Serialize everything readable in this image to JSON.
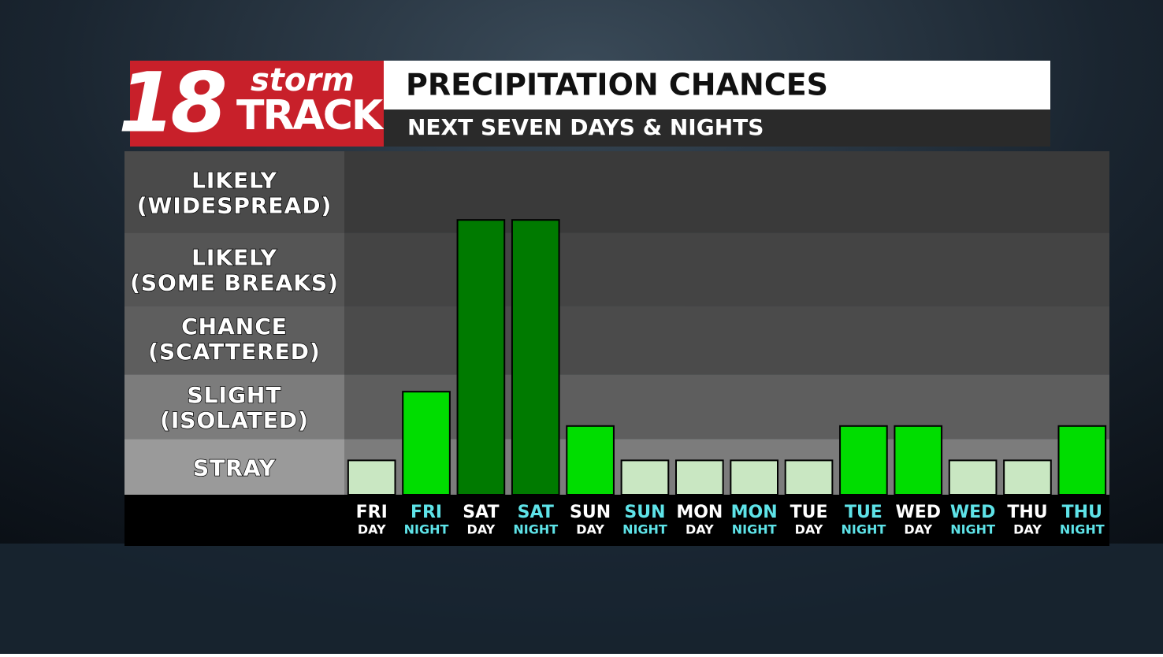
{
  "logo": {
    "number": "18",
    "word1": "storm",
    "word2": "TRACK"
  },
  "chart_data": {
    "type": "bar",
    "title": "PRECIPITATION CHANCES",
    "subtitle": "NEXT SEVEN DAYS & NIGHTS",
    "categories": [
      [
        "FRI",
        "DAY"
      ],
      [
        "FRI",
        "NIGHT"
      ],
      [
        "SAT",
        "DAY"
      ],
      [
        "SAT",
        "NIGHT"
      ],
      [
        "SUN",
        "DAY"
      ],
      [
        "SUN",
        "NIGHT"
      ],
      [
        "MON",
        "DAY"
      ],
      [
        "MON",
        "NIGHT"
      ],
      [
        "TUE",
        "DAY"
      ],
      [
        "TUE",
        "NIGHT"
      ],
      [
        "WED",
        "DAY"
      ],
      [
        "WED",
        "NIGHT"
      ],
      [
        "THU",
        "DAY"
      ],
      [
        "THU",
        "NIGHT"
      ]
    ],
    "category_colors": [
      "#ffffff",
      "#5ee3e8",
      "#ffffff",
      "#5ee3e8",
      "#ffffff",
      "#5ee3e8",
      "#ffffff",
      "#5ee3e8",
      "#ffffff",
      "#5ee3e8",
      "#ffffff",
      "#5ee3e8",
      "#ffffff",
      "#5ee3e8"
    ],
    "values": [
      1,
      3,
      8,
      8,
      2,
      1,
      1,
      1,
      1,
      2,
      2,
      1,
      1,
      2
    ],
    "colors": [
      "#c9e7c2",
      "#00dd00",
      "#007a00",
      "#007a00",
      "#00dd00",
      "#c9e7c2",
      "#c9e7c2",
      "#c9e7c2",
      "#c9e7c2",
      "#00dd00",
      "#00dd00",
      "#c9e7c2",
      "#c9e7c2",
      "#00dd00"
    ],
    "ylim": [
      0,
      10
    ],
    "yticks": [
      {
        "value": 0.75,
        "label": [
          "STRAY"
        ]
      },
      {
        "value": 2.5,
        "label": [
          "SLIGHT",
          "(ISOLATED)"
        ]
      },
      {
        "value": 4.5,
        "label": [
          "CHANCE",
          "(SCATTERED)"
        ]
      },
      {
        "value": 6.5,
        "label": [
          "LIKELY",
          "(SOME BREAKS)"
        ]
      },
      {
        "value": 8.75,
        "label": [
          "LIKELY",
          "(WIDESPREAD)"
        ]
      }
    ]
  }
}
